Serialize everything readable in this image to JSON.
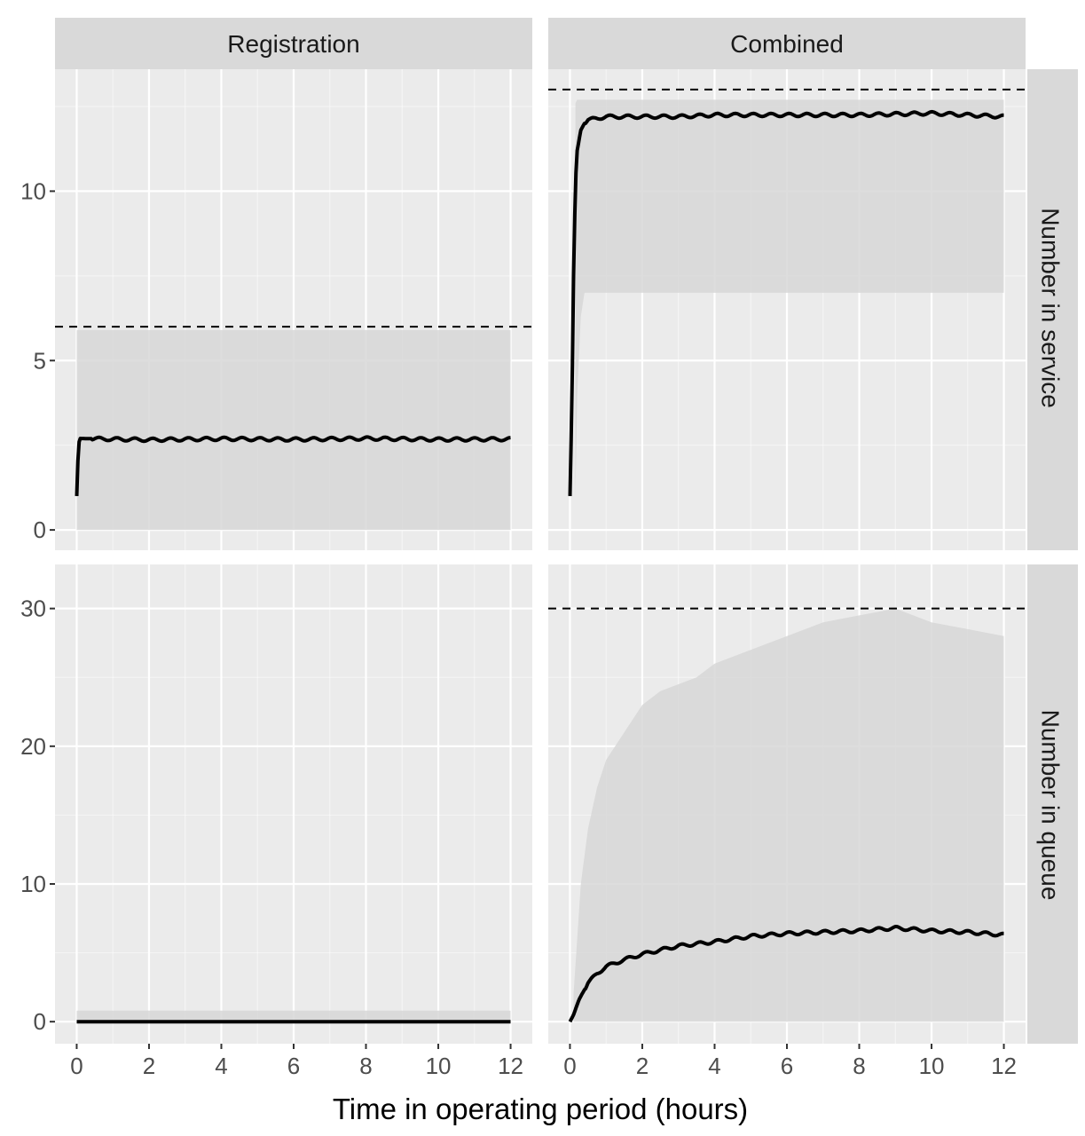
{
  "chart_data": {
    "type": "line",
    "xlabel": "Time in operating period (hours)",
    "columns": [
      "Registration",
      "Combined"
    ],
    "rows": [
      "Number in service",
      "Number in queue"
    ],
    "x_ticks": [
      0,
      2,
      4,
      6,
      8,
      10,
      12
    ],
    "xlim": [
      -0.6,
      12.6
    ],
    "rows_scale": [
      {
        "label": "Number in service",
        "ylim": [
          -0.6,
          13.6
        ],
        "y_ticks": [
          0,
          5,
          10
        ],
        "y_tick_labels": [
          "0",
          "5",
          "10"
        ]
      },
      {
        "label": "Number in queue",
        "ylim": [
          -1.6,
          33.2
        ],
        "y_ticks": [
          0,
          10,
          20,
          30
        ],
        "y_tick_labels": [
          "0",
          "10",
          "20",
          "30"
        ]
      }
    ],
    "grid": true,
    "legend": "none",
    "colors": {
      "panel_background": "#ebebeb",
      "strip_background": "#d9d9d9",
      "mean_line": "#000000",
      "band": "#d7d7d7",
      "gridline": "#ffffff"
    },
    "panels": [
      {
        "row": "Number in service",
        "column": "Registration",
        "capacity": 6,
        "band": {
          "x": [
            0,
            12
          ],
          "lower": [
            0,
            0
          ],
          "upper": [
            5.9,
            5.9
          ]
        },
        "mean": {
          "x": [
            0,
            0.05,
            0.1,
            1,
            2,
            4,
            6,
            8,
            10,
            12
          ],
          "y": [
            1,
            2.55,
            2.7,
            2.68,
            2.66,
            2.69,
            2.67,
            2.7,
            2.67,
            2.68
          ]
        }
      },
      {
        "row": "Number in service",
        "column": "Combined",
        "capacity": 13,
        "band": {
          "x": [
            0.15,
            0.2,
            0.3,
            0.4,
            0.5,
            1,
            4,
            8,
            12
          ],
          "lower": [
            1,
            4,
            6.3,
            7,
            7,
            7,
            7,
            7,
            7
          ],
          "upper": [
            12.6,
            12.7,
            12.7,
            12.7,
            12.7,
            12.7,
            12.7,
            12.7,
            12.7
          ]
        },
        "mean": {
          "x": [
            0,
            0.05,
            0.1,
            0.15,
            0.2,
            0.3,
            0.4,
            0.5,
            0.75,
            1,
            1.5,
            2,
            3,
            4,
            6,
            8,
            10,
            11,
            12
          ],
          "y": [
            1,
            3.5,
            7.5,
            10.2,
            11.2,
            11.8,
            12.0,
            12.1,
            12.15,
            12.2,
            12.2,
            12.2,
            12.2,
            12.25,
            12.25,
            12.25,
            12.3,
            12.25,
            12.2
          ]
        }
      },
      {
        "row": "Number in queue",
        "column": "Registration",
        "capacity": null,
        "band": {
          "x": [
            0,
            12
          ],
          "lower": [
            0,
            0
          ],
          "upper": [
            0.8,
            0.8
          ]
        },
        "mean": {
          "x": [
            0,
            12
          ],
          "y": [
            0,
            0
          ]
        }
      },
      {
        "row": "Number in queue",
        "column": "Combined",
        "capacity": 30,
        "band": {
          "x": [
            0.1,
            0.3,
            0.5,
            0.75,
            1,
            1.5,
            2,
            2.5,
            3,
            3.5,
            4,
            5,
            6,
            7,
            8,
            9,
            10,
            11,
            12
          ],
          "lower": [
            0,
            0,
            0,
            0,
            0,
            0,
            0,
            0,
            0,
            0,
            0,
            0,
            0,
            0,
            0,
            0,
            0,
            0,
            0
          ],
          "upper": [
            2,
            10,
            14,
            17,
            19,
            21,
            23,
            24,
            24.5,
            25,
            26,
            27,
            28,
            29,
            29.5,
            30,
            29,
            28.5,
            28
          ]
        },
        "mean": {
          "x": [
            0,
            0.1,
            0.25,
            0.5,
            0.75,
            1,
            1.5,
            2,
            2.5,
            3,
            4,
            5,
            6,
            7,
            8,
            9,
            10,
            11,
            12
          ],
          "y": [
            0,
            0.5,
            1.6,
            2.8,
            3.5,
            4.0,
            4.5,
            4.9,
            5.2,
            5.5,
            5.8,
            6.2,
            6.4,
            6.5,
            6.6,
            6.8,
            6.6,
            6.5,
            6.3
          ]
        }
      }
    ]
  }
}
